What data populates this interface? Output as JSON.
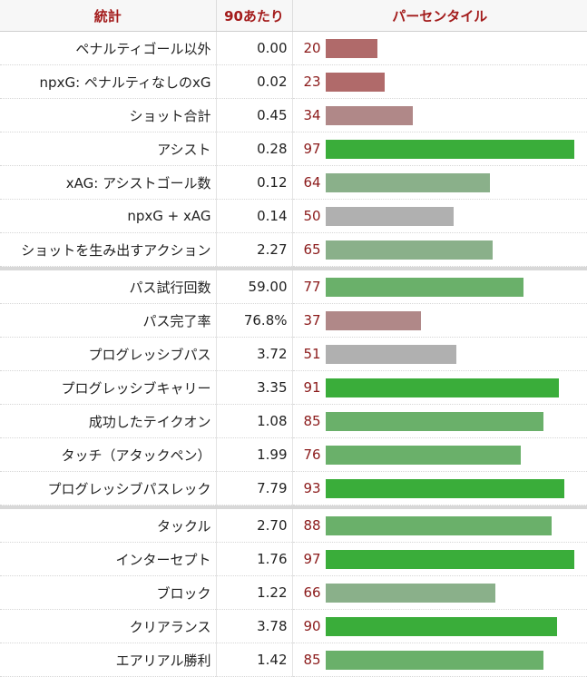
{
  "header": {
    "stat": "統計",
    "per90": "90あたり",
    "percentile": "パーセンタイル"
  },
  "colors": {
    "low": "#b06a6a",
    "low_mid": "#b08888",
    "mid": "#b0b0b0",
    "high_mid": "#8ab08a",
    "high": "#6ab06a",
    "top": "#3aad3a"
  },
  "chart_data": {
    "type": "bar",
    "orientation": "horizontal",
    "xlim": [
      0,
      99
    ],
    "groups": [
      {
        "rows": [
          {
            "label": "ペナルティゴール以外",
            "per90": "0.00",
            "percentile": 20
          },
          {
            "label": "npxG: ペナルティなしのxG",
            "per90": "0.02",
            "percentile": 23
          },
          {
            "label": "ショット合計",
            "per90": "0.45",
            "percentile": 34
          },
          {
            "label": "アシスト",
            "per90": "0.28",
            "percentile": 97
          },
          {
            "label": "xAG: アシストゴール数",
            "per90": "0.12",
            "percentile": 64
          },
          {
            "label": "npxG + xAG",
            "per90": "0.14",
            "percentile": 50
          },
          {
            "label": "ショットを生み出すアクション",
            "per90": "2.27",
            "percentile": 65
          }
        ]
      },
      {
        "rows": [
          {
            "label": "パス試行回数",
            "per90": "59.00",
            "percentile": 77
          },
          {
            "label": "パス完了率",
            "per90": "76.8%",
            "percentile": 37
          },
          {
            "label": "プログレッシブパス",
            "per90": "3.72",
            "percentile": 51
          },
          {
            "label": "プログレッシブキャリー",
            "per90": "3.35",
            "percentile": 91
          },
          {
            "label": "成功したテイクオン",
            "per90": "1.08",
            "percentile": 85
          },
          {
            "label": "タッチ（アタックペン）",
            "per90": "1.99",
            "percentile": 76
          },
          {
            "label": "プログレッシブパスレック",
            "per90": "7.79",
            "percentile": 93
          }
        ]
      },
      {
        "rows": [
          {
            "label": "タックル",
            "per90": "2.70",
            "percentile": 88
          },
          {
            "label": "インターセプト",
            "per90": "1.76",
            "percentile": 97
          },
          {
            "label": "ブロック",
            "per90": "1.22",
            "percentile": 66
          },
          {
            "label": "クリアランス",
            "per90": "3.78",
            "percentile": 90
          },
          {
            "label": "エアリアル勝利",
            "per90": "1.42",
            "percentile": 85
          }
        ]
      }
    ]
  }
}
